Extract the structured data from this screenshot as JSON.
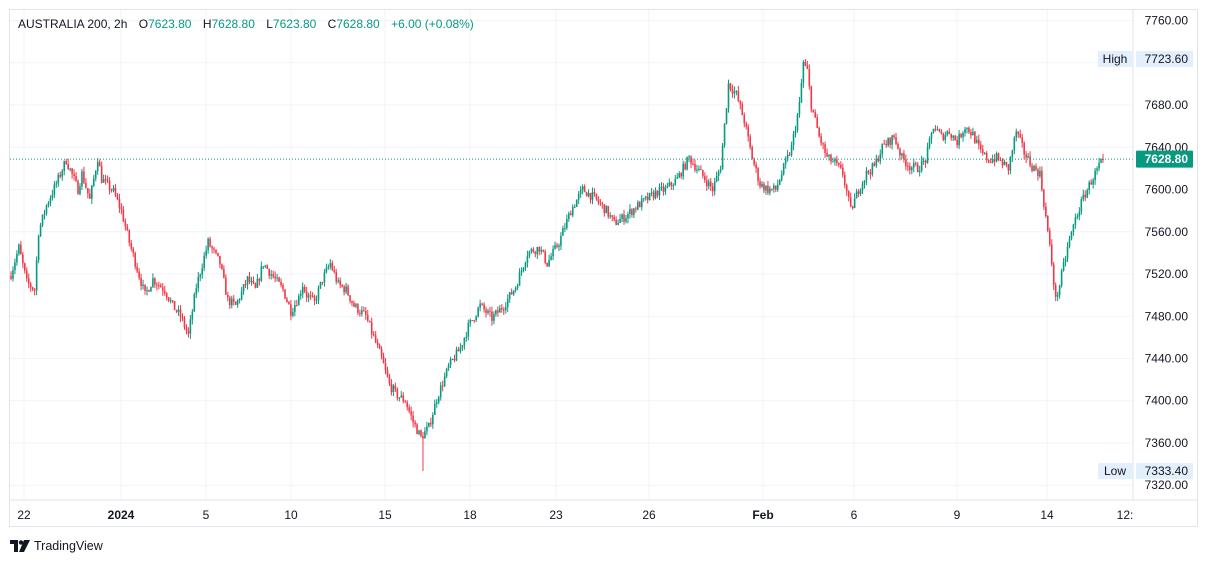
{
  "header": {
    "symbol": "AUSTRALIA 200, 2h",
    "open_label": "O",
    "open": "7623.80",
    "high_label": "H",
    "high": "7628.80",
    "low_label": "L",
    "low": "7623.80",
    "close_label": "C",
    "close": "7628.80",
    "change": "+6.00 (+0.08%)"
  },
  "footer": {
    "brand": "TradingView",
    "logo_icon": "tradingview-logo-icon"
  },
  "colors": {
    "up": "#089981",
    "down": "#f23645",
    "grid": "#f0f3fa",
    "axis_text": "#131722",
    "frame": "#e0e3eb"
  },
  "chart_data": {
    "type": "candlestick",
    "y_axis": {
      "position": "right",
      "range": [
        7306,
        7770
      ],
      "ticks": [
        "7320.00",
        "7360.00",
        "7400.00",
        "7440.00",
        "7480.00",
        "7520.00",
        "7560.00",
        "7600.00",
        "7640.00",
        "7680.00",
        "7720.00",
        "7760.00"
      ]
    },
    "x_axis": {
      "labels": [
        "22",
        "2024",
        "5",
        "10",
        "15",
        "18",
        "23",
        "26",
        "Feb",
        "6",
        "9",
        "14",
        "12:"
      ],
      "bold": [
        "2024",
        "Feb"
      ]
    },
    "markers": {
      "high": {
        "label": "High",
        "value": "7723.60"
      },
      "low": {
        "label": "Low",
        "value": "7333.40"
      },
      "last": {
        "value": "7628.80"
      }
    },
    "grid": true,
    "trend_anchors": [
      [
        0,
        7520
      ],
      [
        4,
        7545
      ],
      [
        8,
        7512
      ],
      [
        12,
        7505
      ],
      [
        14,
        7560
      ],
      [
        18,
        7585
      ],
      [
        24,
        7610
      ],
      [
        28,
        7628
      ],
      [
        34,
        7600
      ],
      [
        36,
        7615
      ],
      [
        40,
        7590
      ],
      [
        44,
        7630
      ],
      [
        46,
        7610
      ],
      [
        52,
        7598
      ],
      [
        56,
        7580
      ],
      [
        60,
        7550
      ],
      [
        64,
        7525
      ],
      [
        68,
        7500
      ],
      [
        72,
        7515
      ],
      [
        78,
        7505
      ],
      [
        82,
        7490
      ],
      [
        86,
        7480
      ],
      [
        90,
        7462
      ],
      [
        94,
        7508
      ],
      [
        100,
        7550
      ],
      [
        106,
        7530
      ],
      [
        110,
        7495
      ],
      [
        114,
        7490
      ],
      [
        120,
        7515
      ],
      [
        124,
        7505
      ],
      [
        128,
        7530
      ],
      [
        132,
        7520
      ],
      [
        138,
        7505
      ],
      [
        142,
        7485
      ],
      [
        146,
        7498
      ],
      [
        148,
        7510
      ],
      [
        150,
        7500
      ],
      [
        154,
        7493
      ],
      [
        158,
        7515
      ],
      [
        162,
        7530
      ],
      [
        166,
        7510
      ],
      [
        170,
        7505
      ],
      [
        174,
        7490
      ],
      [
        180,
        7480
      ],
      [
        184,
        7460
      ],
      [
        188,
        7440
      ],
      [
        192,
        7415
      ],
      [
        196,
        7405
      ],
      [
        200,
        7400
      ],
      [
        204,
        7380
      ],
      [
        208,
        7365
      ],
      [
        212,
        7375
      ],
      [
        216,
        7402
      ],
      [
        222,
        7432
      ],
      [
        228,
        7450
      ],
      [
        232,
        7470
      ],
      [
        238,
        7490
      ],
      [
        244,
        7478
      ],
      [
        250,
        7490
      ],
      [
        256,
        7508
      ],
      [
        262,
        7540
      ],
      [
        268,
        7545
      ],
      [
        272,
        7530
      ],
      [
        278,
        7550
      ],
      [
        284,
        7580
      ],
      [
        290,
        7600
      ],
      [
        296,
        7592
      ],
      [
        302,
        7580
      ],
      [
        306,
        7568
      ],
      [
        312,
        7575
      ],
      [
        318,
        7585
      ],
      [
        322,
        7590
      ],
      [
        328,
        7598
      ],
      [
        332,
        7600
      ],
      [
        338,
        7610
      ],
      [
        344,
        7630
      ],
      [
        350,
        7615
      ],
      [
        356,
        7600
      ],
      [
        360,
        7622
      ],
      [
        364,
        7700
      ],
      [
        368,
        7690
      ],
      [
        372,
        7665
      ],
      [
        376,
        7630
      ],
      [
        380,
        7605
      ],
      [
        384,
        7600
      ],
      [
        388,
        7600
      ],
      [
        392,
        7620
      ],
      [
        396,
        7640
      ],
      [
        400,
        7680
      ],
      [
        402,
        7720
      ],
      [
        404,
        7712
      ],
      [
        406,
        7680
      ],
      [
        410,
        7650
      ],
      [
        414,
        7630
      ],
      [
        418,
        7625
      ],
      [
        422,
        7615
      ],
      [
        426,
        7580
      ],
      [
        430,
        7600
      ],
      [
        434,
        7615
      ],
      [
        438,
        7622
      ],
      [
        442,
        7640
      ],
      [
        448,
        7650
      ],
      [
        452,
        7630
      ],
      [
        456,
        7622
      ],
      [
        460,
        7620
      ],
      [
        464,
        7628
      ],
      [
        468,
        7660
      ],
      [
        472,
        7650
      ],
      [
        476,
        7655
      ],
      [
        480,
        7645
      ],
      [
        484,
        7660
      ],
      [
        488,
        7652
      ],
      [
        492,
        7635
      ],
      [
        496,
        7628
      ],
      [
        500,
        7630
      ],
      [
        506,
        7620
      ],
      [
        510,
        7655
      ],
      [
        514,
        7635
      ],
      [
        518,
        7622
      ],
      [
        522,
        7615
      ],
      [
        526,
        7560
      ],
      [
        528,
        7530
      ],
      [
        530,
        7495
      ],
      [
        532,
        7510
      ],
      [
        536,
        7545
      ],
      [
        540,
        7572
      ],
      [
        544,
        7592
      ],
      [
        548,
        7608
      ],
      [
        552,
        7622
      ],
      [
        554,
        7628.8
      ]
    ]
  }
}
